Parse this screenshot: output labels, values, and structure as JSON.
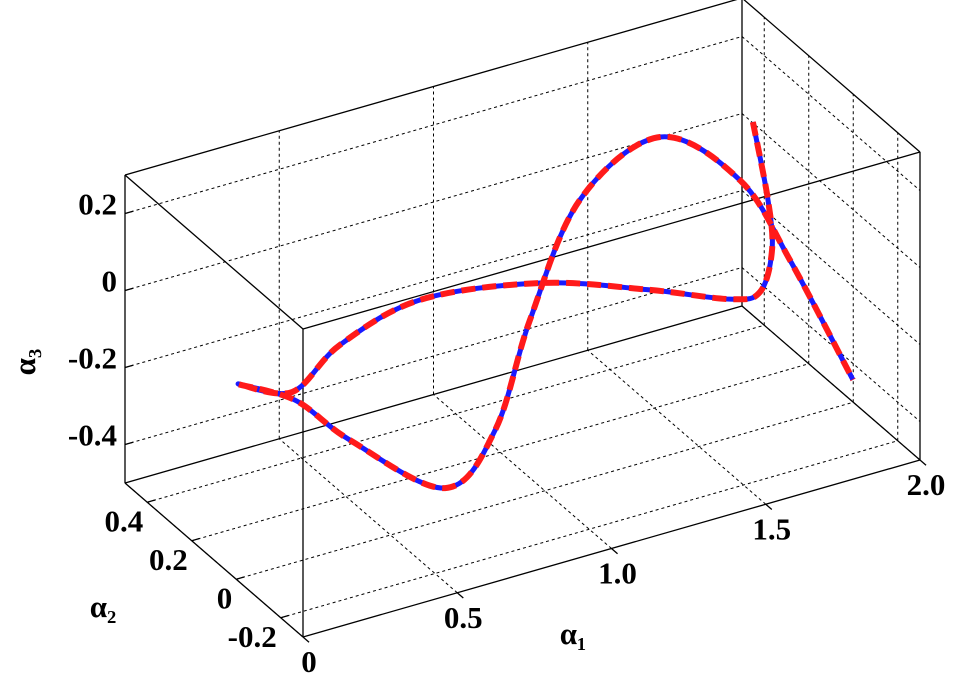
{
  "chart_data": {
    "type": "line3d",
    "xlabel": "α₁",
    "ylabel": "α₂",
    "zlabel": "α₃",
    "xlim": [
      0,
      2
    ],
    "ylim": [
      -0.3,
      0.5
    ],
    "zlim": [
      -0.5,
      0.3
    ],
    "xticks": [
      0,
      0.5,
      {
        "value": 1,
        "label": "1.0"
      },
      1.5,
      {
        "value": 2,
        "label": "2.0"
      }
    ],
    "yticks": [
      -0.2,
      0,
      0.2,
      0.4
    ],
    "zticks": [
      -0.4,
      -0.2,
      0,
      0.2
    ],
    "grid": true,
    "series": [
      {
        "color": "#1a1aff",
        "style": "solid",
        "x": [
          1.891,
          1.904,
          1.881,
          1.806,
          1.673,
          1.377,
          0.985,
          0.56,
          0.264,
          0.145,
          0.006,
          0.154,
          0.297,
          0.569,
          0.767,
          0.916,
          1.15,
          1.482,
          1.777,
          1.831,
          1.927
        ],
        "y": [
          0.3,
          0.25,
          0.2,
          0.15,
          0.1,
          0.05,
          0,
          -0.05,
          -0.1,
          -0.05,
          0,
          -0.05,
          -0.1,
          -0.15,
          -0.1,
          -0.05,
          0.05,
          0.15,
          0.2,
          0.05,
          -0.1
        ],
        "z": [
          0.103,
          -0.078,
          -0.177,
          -0.244,
          -0.207,
          -0.09,
          0.043,
          0.122,
          0.098,
          -0.022,
          0.006,
          -0.045,
          -0.157,
          -0.319,
          -0.239,
          -0.012,
          0.196,
          0.233,
          0.028,
          -0.117,
          -0.375
        ]
      },
      {
        "color": "#ff1a1a",
        "style": "dashed",
        "x": [
          1.891,
          1.904,
          1.881,
          1.806,
          1.673,
          1.377,
          0.985,
          0.56,
          0.264,
          0.145,
          0.006,
          0.154,
          0.297,
          0.569,
          0.767,
          0.916,
          1.15,
          1.482,
          1.777,
          1.831,
          1.927
        ],
        "y": [
          0.3,
          0.25,
          0.2,
          0.15,
          0.1,
          0.05,
          0,
          -0.05,
          -0.1,
          -0.05,
          0,
          -0.05,
          -0.1,
          -0.15,
          -0.1,
          -0.05,
          0.05,
          0.15,
          0.2,
          0.05,
          -0.1
        ],
        "z": [
          0.103,
          -0.078,
          -0.177,
          -0.244,
          -0.207,
          -0.09,
          0.043,
          0.122,
          0.098,
          -0.022,
          0.006,
          -0.045,
          -0.157,
          -0.319,
          -0.239,
          -0.012,
          0.196,
          0.233,
          0.028,
          -0.117,
          -0.375
        ]
      }
    ]
  }
}
